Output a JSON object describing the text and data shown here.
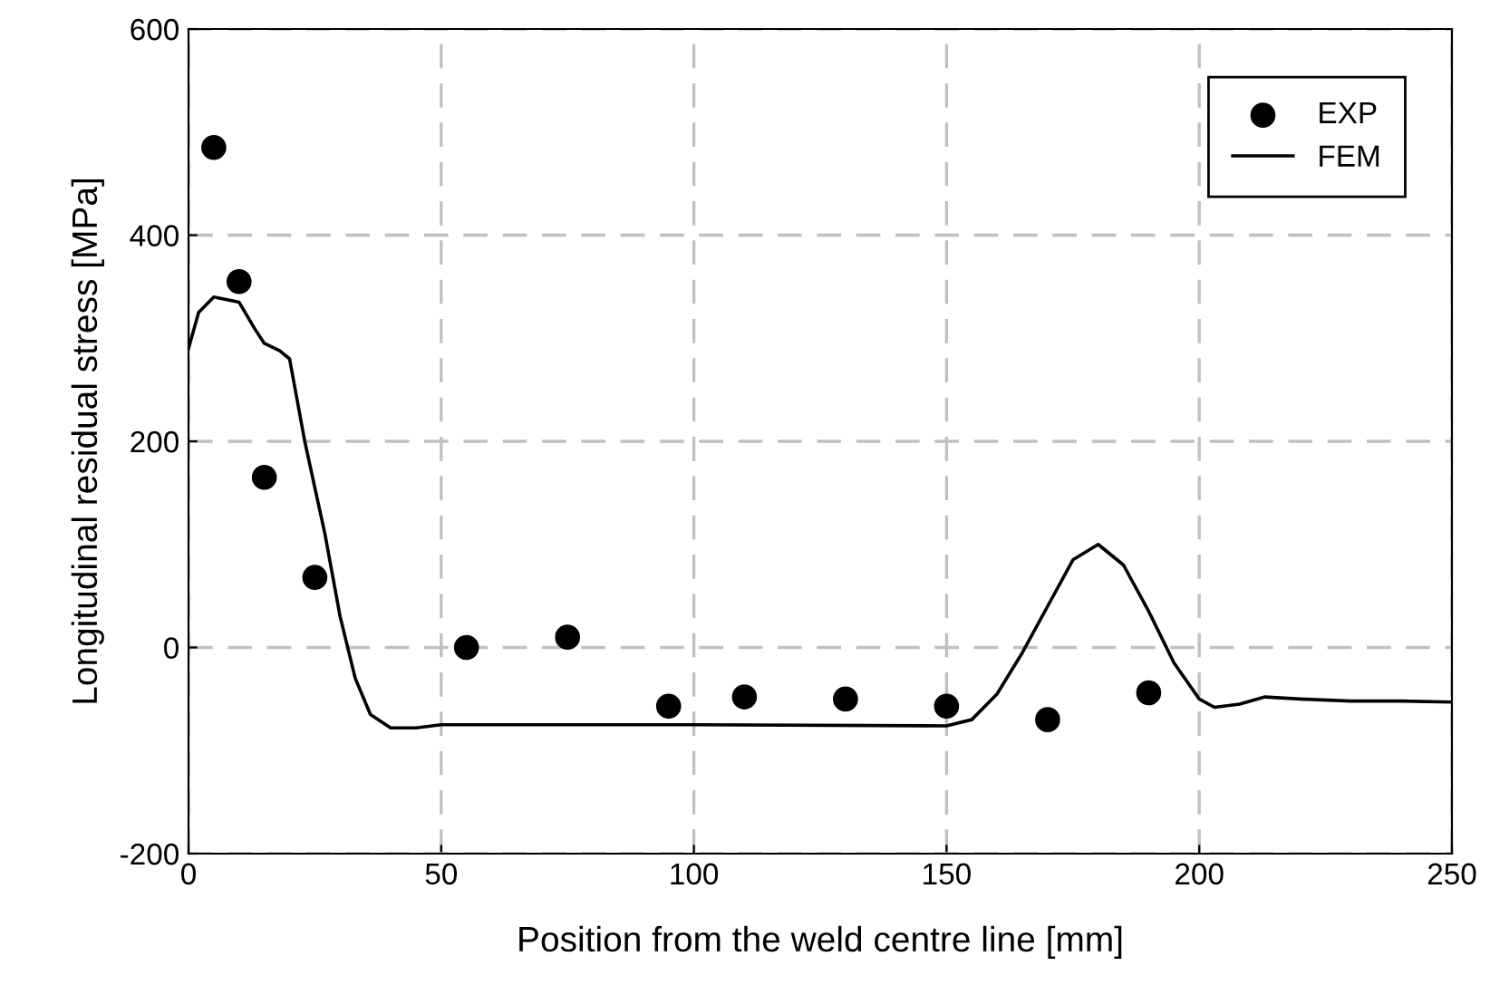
{
  "chart_data": {
    "type": "scatter",
    "xlabel": "Position from the weld centre line [mm]",
    "ylabel": "Longitudinal residual stress [MPa]",
    "xlim": [
      0,
      250
    ],
    "xticks": [
      0,
      50,
      100,
      150,
      200,
      250
    ],
    "ylim": [
      -200,
      600
    ],
    "yticks": [
      -200,
      0,
      200,
      400,
      600
    ],
    "grid": true,
    "legend": "top right",
    "series": [
      {
        "name": "EXP",
        "marker": "circle",
        "color": "#000000",
        "x": [
          5,
          10,
          15,
          25,
          55,
          75,
          95,
          110,
          130,
          150,
          170,
          190
        ],
        "values": [
          485,
          355,
          165,
          68,
          0,
          10,
          -57,
          -48,
          -50,
          -57,
          -70,
          -44
        ]
      },
      {
        "name": "FEM",
        "type": "line",
        "line_style": "solid",
        "color": "#000000",
        "x": [
          0,
          2,
          5,
          10,
          13,
          15,
          18,
          20,
          23,
          27,
          30,
          33,
          36,
          40,
          45,
          50,
          55,
          100,
          150,
          155,
          160,
          165,
          170,
          175,
          180,
          185,
          190,
          195,
          200,
          203,
          208,
          213,
          220,
          230,
          240,
          250
        ],
        "values": [
          290,
          325,
          340,
          335,
          310,
          295,
          288,
          280,
          200,
          110,
          30,
          -30,
          -65,
          -78,
          -78,
          -75,
          -75,
          -75,
          -76,
          -70,
          -45,
          -5,
          40,
          85,
          100,
          80,
          35,
          -15,
          -50,
          -58,
          -55,
          -48,
          -50,
          -52,
          -52,
          -53
        ]
      }
    ]
  }
}
